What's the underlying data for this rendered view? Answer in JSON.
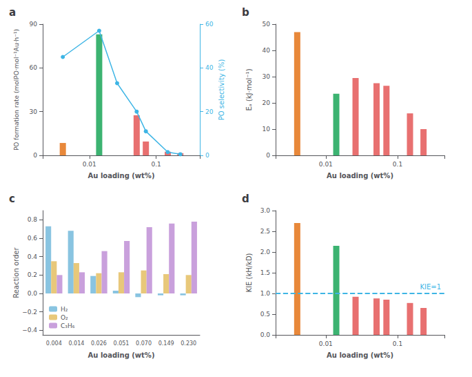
{
  "chart_data": [
    {
      "type": "bar",
      "title": "a",
      "xlabel": "Au loading (wt%)",
      "ylabel": "PO formation rate (molPO·mol⁻¹Au·h⁻¹)",
      "y2label": "PO selectivity (%)",
      "log": "x",
      "grid": false,
      "xlim": [
        0.002,
        0.45
      ],
      "xticks": [
        0.01,
        0.1
      ],
      "ylim": [
        0,
        90
      ],
      "yticks": [
        0,
        30,
        60,
        90
      ],
      "y2lim": [
        0,
        60
      ],
      "y2ticks": [
        0,
        20,
        40,
        60
      ],
      "series": [
        {
          "type": "bar",
          "x": [
            0.004,
            0.014,
            0.051,
            0.07,
            0.149,
            0.23
          ],
          "values": [
            8.5,
            83,
            27.5,
            9.5,
            2.5,
            1.5
          ],
          "colors": [
            "#E8883A",
            "#3CB371",
            "#E87070",
            "#E87070",
            "#E87070",
            "#E87070"
          ]
        },
        {
          "type": "line",
          "axis": "y2",
          "x": [
            0.004,
            0.014,
            0.026,
            0.051,
            0.07,
            0.149,
            0.23
          ],
          "values": [
            45,
            57,
            33,
            20,
            11,
            1.5,
            0.5
          ],
          "color": "#3EB5E5",
          "marker": "circle",
          "line_style": "solid"
        }
      ]
    },
    {
      "type": "bar",
      "title": "b",
      "xlabel": "Au loading (wt%)",
      "ylabel": "Eₐ (kJ·mol⁻¹)",
      "log": "x",
      "grid": false,
      "xlim": [
        0.002,
        0.45
      ],
      "xticks": [
        0.01,
        0.1
      ],
      "ylim": [
        0,
        50
      ],
      "yticks": [
        0,
        10,
        20,
        30,
        40,
        50
      ],
      "series": [
        {
          "type": "bar",
          "x": [
            0.004,
            0.014,
            0.026,
            0.051,
            0.07,
            0.149,
            0.23
          ],
          "values": [
            47,
            23.5,
            29.5,
            27.5,
            26.5,
            16,
            10
          ],
          "colors": [
            "#E8883A",
            "#3CB371",
            "#E87070",
            "#E87070",
            "#E87070",
            "#E87070",
            "#E87070"
          ]
        }
      ]
    },
    {
      "type": "bar",
      "title": "c",
      "xlabel": "Au loading (wt%)",
      "ylabel": "Reaction order",
      "grid": false,
      "legend": "lower left",
      "categories": [
        "0.004",
        "0.014",
        "0.026",
        "0.051",
        "0.070",
        "0.149",
        "0.230"
      ],
      "ylim": [
        -0.45,
        0.9
      ],
      "yticks": [
        {
          "value": -0.4,
          "label": "−0.4"
        },
        {
          "value": -0.2,
          "label": "−0.2"
        },
        {
          "value": 0.0,
          "label": "0.0"
        },
        0.2,
        0.4,
        0.6,
        0.8
      ],
      "series": [
        {
          "name": "H₂",
          "color": "#89C4E1",
          "values": [
            0.73,
            0.68,
            0.19,
            0.03,
            -0.04,
            -0.02,
            -0.02
          ]
        },
        {
          "name": "O₂",
          "color": "#E8C87A",
          "values": [
            0.35,
            0.33,
            0.22,
            0.23,
            0.25,
            0.21,
            0.2
          ]
        },
        {
          "name": "C₃H₆",
          "color": "#C9A0DC",
          "values": [
            0.2,
            0.23,
            0.46,
            0.57,
            0.72,
            0.76,
            0.78
          ]
        }
      ]
    },
    {
      "type": "bar",
      "title": "d",
      "xlabel": "Au loading (wt%)",
      "ylabel": "KIE (kH/kD)",
      "log": "x",
      "grid": false,
      "xlim": [
        0.002,
        0.45
      ],
      "xticks": [
        0.01,
        0.1
      ],
      "ylim": [
        0,
        3.0
      ],
      "yticks": [
        {
          "value": 0.0,
          "label": "0.0"
        },
        0.5,
        {
          "value": 1.0,
          "label": "1.0"
        },
        1.5,
        {
          "value": 2.0,
          "label": "2.0"
        },
        2.5,
        {
          "value": 3.0,
          "label": "3.0"
        }
      ],
      "annotations": [
        {
          "text": "KIE=1",
          "y": 1.0,
          "color": "#3EB5E5",
          "line_style": "dashed"
        }
      ],
      "series": [
        {
          "type": "bar",
          "x": [
            0.004,
            0.014,
            0.026,
            0.051,
            0.07,
            0.149,
            0.23
          ],
          "values": [
            2.7,
            2.15,
            0.92,
            0.88,
            0.85,
            0.77,
            0.65
          ],
          "colors": [
            "#E8883A",
            "#3CB371",
            "#E87070",
            "#E87070",
            "#E87070",
            "#E87070",
            "#E87070"
          ]
        }
      ]
    }
  ]
}
